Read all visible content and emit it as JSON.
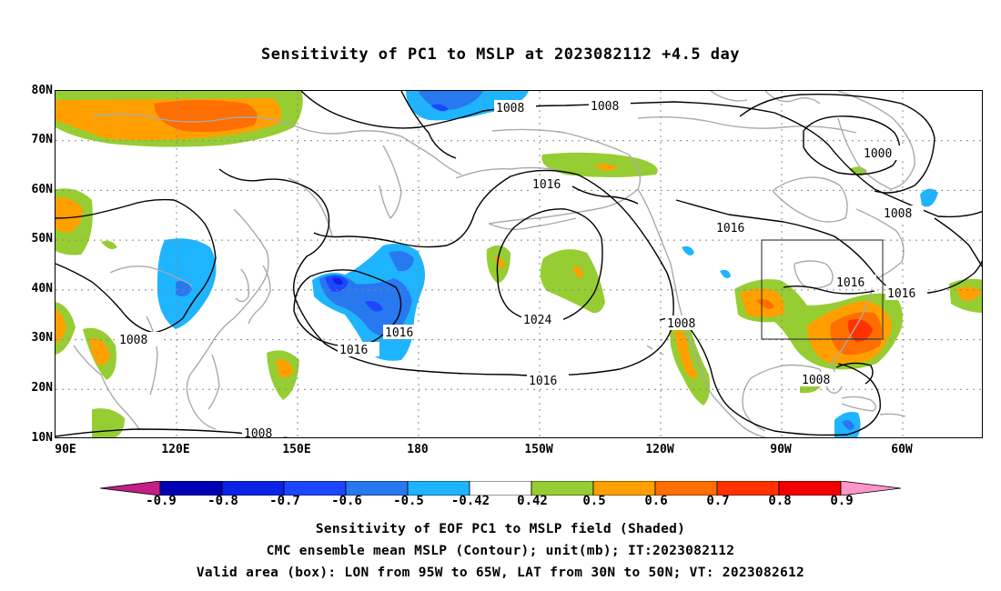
{
  "title": "Sensitivity of PC1 to MSLP at 2023082112 +4.5 day",
  "map": {
    "lat_labels": [
      "80N",
      "70N",
      "60N",
      "50N",
      "40N",
      "30N",
      "20N",
      "10N"
    ],
    "lon_labels": [
      "90E",
      "120E",
      "150E",
      "180",
      "150W",
      "120W",
      "90W",
      "60W"
    ],
    "extent": {
      "lon": [
        "90E",
        "40W"
      ],
      "lat": [
        "10N",
        "80N"
      ]
    },
    "grid": "dotted",
    "coastline_color": "#aaaaaa",
    "valid_area_box": {
      "lon": [
        "95W",
        "65W"
      ],
      "lat": [
        "30N",
        "50N"
      ]
    },
    "contour_labels": [
      "1008",
      "1008",
      "1000",
      "1008",
      "1016",
      "1016",
      "1016",
      "1016",
      "1016",
      "1024",
      "1016",
      "1016",
      "1008",
      "1008",
      "1008",
      "1008"
    ]
  },
  "colorbar": {
    "labels": [
      "-0.9",
      "-0.8",
      "-0.7",
      "-0.6",
      "-0.5",
      "-0.42",
      "0.42",
      "0.5",
      "0.6",
      "0.7",
      "0.8",
      "0.9"
    ],
    "colors": [
      "#c21f87",
      "#0000b4",
      "#0a23e6",
      "#1e46ff",
      "#2878f0",
      "#1eb4ff",
      "#ffffff",
      "#96cd32",
      "#ffa000",
      "#ff6e00",
      "#ff3200",
      "#f00000",
      "#ff96c8"
    ]
  },
  "captions": [
    "Sensitivity of EOF PC1 to MSLP field (Shaded)",
    "CMC ensemble mean MSLP (Contour); unit(mb); IT:2023082112",
    "Valid area (box): LON from 95W to 65W, LAT from 30N to 50N; VT: 2023082612"
  ]
}
